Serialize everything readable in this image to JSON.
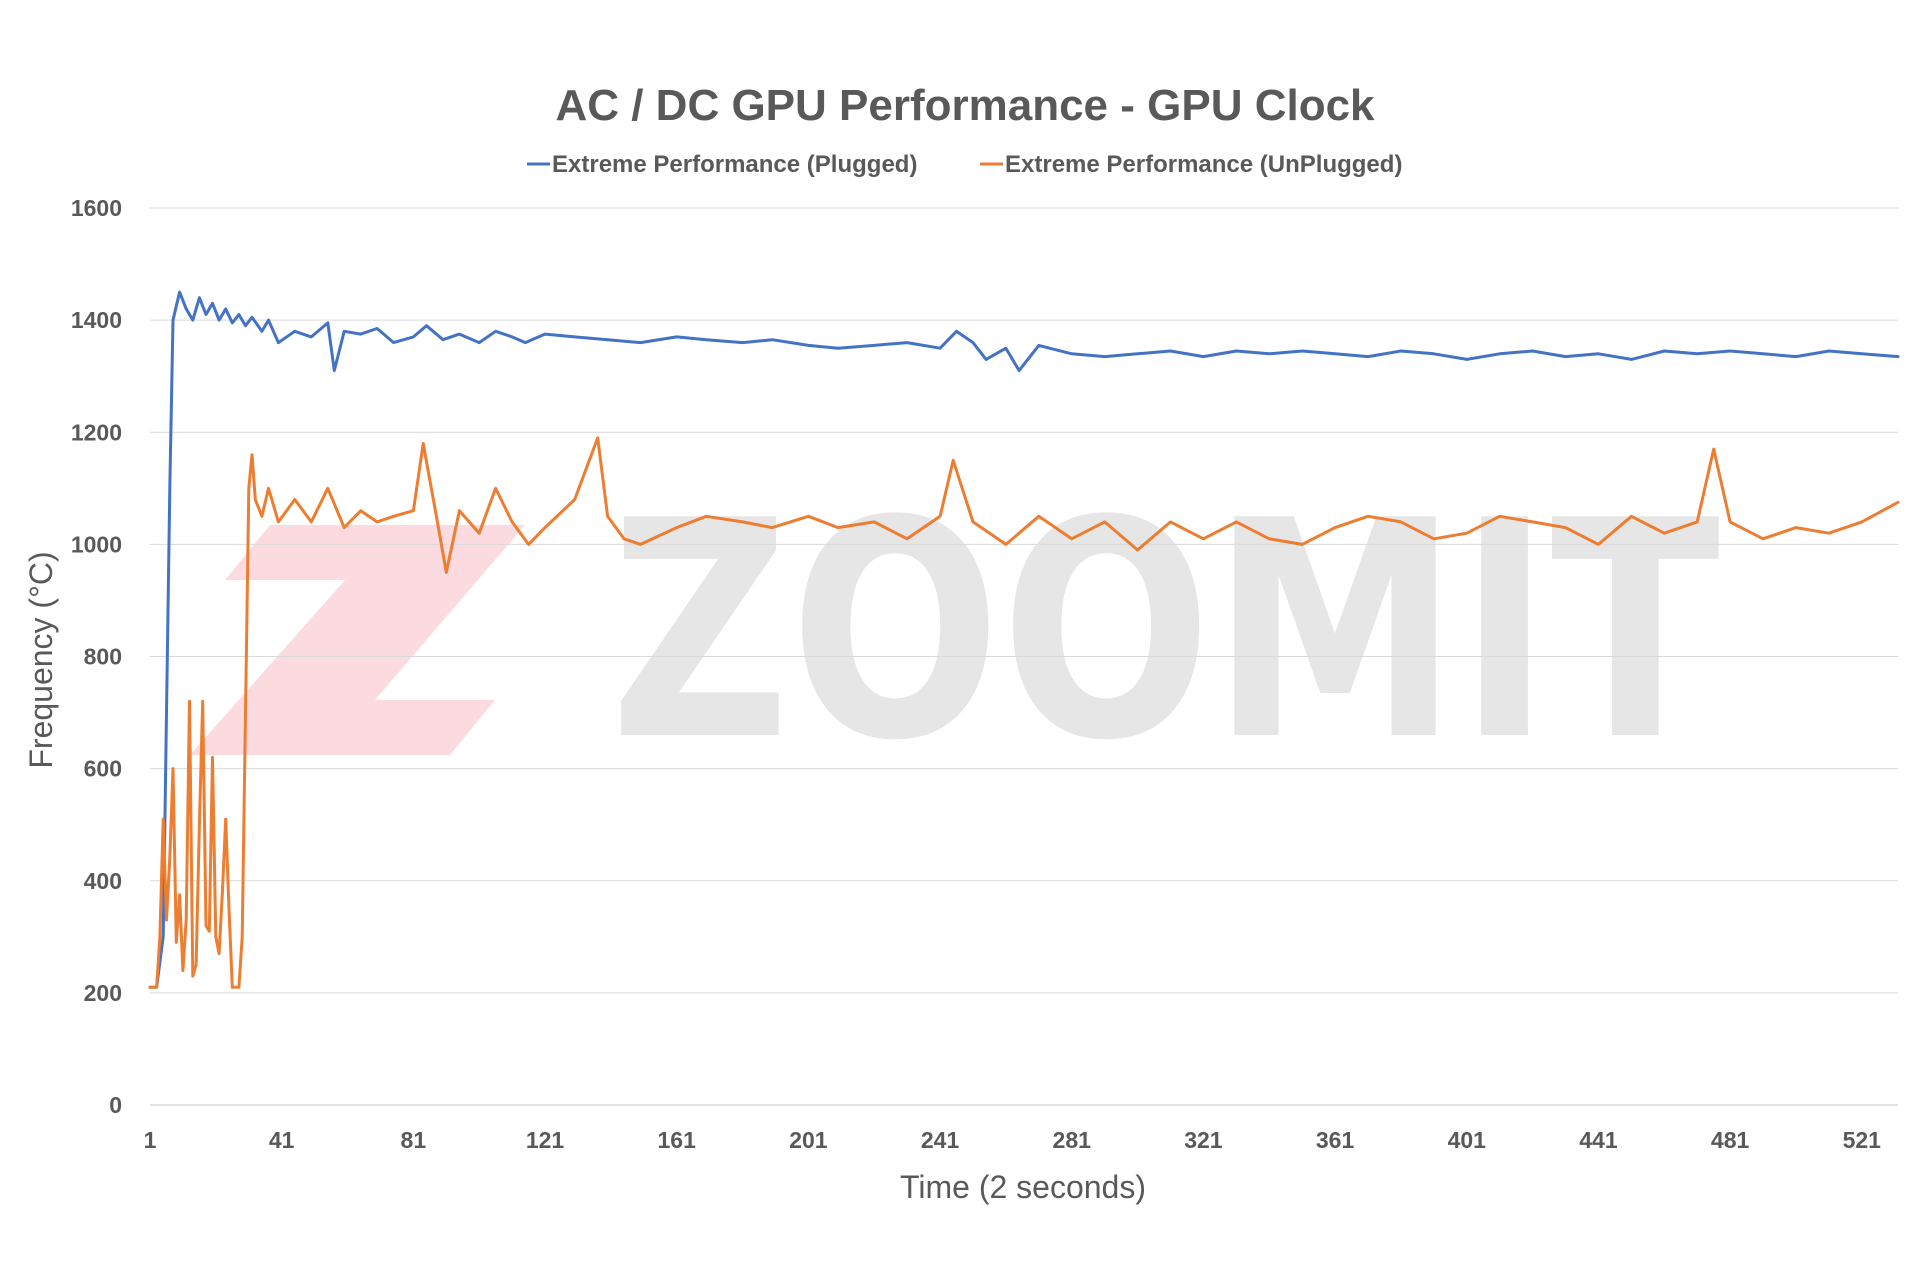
{
  "chart_data": {
    "type": "line",
    "title": "AC / DC GPU Performance - GPU Clock",
    "xlabel": "Time (2 seconds)",
    "ylabel": "Frequency (°C)",
    "xlim": [
      1,
      532
    ],
    "ylim": [
      0,
      1600
    ],
    "y_ticks": [
      0,
      200,
      400,
      600,
      800,
      1000,
      1200,
      1400,
      1600
    ],
    "x_ticks": [
      1,
      41,
      81,
      121,
      161,
      201,
      241,
      281,
      321,
      361,
      401,
      441,
      481,
      521
    ],
    "grid": true,
    "legend": "top-center",
    "series": [
      {
        "name": "Extreme Performance (Plugged)",
        "color": "#4472c4",
        "points": [
          [
            1,
            210
          ],
          [
            3,
            210
          ],
          [
            5,
            300
          ],
          [
            6,
            700
          ],
          [
            7,
            1100
          ],
          [
            8,
            1400
          ],
          [
            10,
            1450
          ],
          [
            12,
            1420
          ],
          [
            14,
            1400
          ],
          [
            16,
            1440
          ],
          [
            18,
            1410
          ],
          [
            20,
            1430
          ],
          [
            22,
            1400
          ],
          [
            24,
            1420
          ],
          [
            26,
            1395
          ],
          [
            28,
            1410
          ],
          [
            30,
            1390
          ],
          [
            32,
            1405
          ],
          [
            35,
            1380
          ],
          [
            37,
            1400
          ],
          [
            40,
            1360
          ],
          [
            45,
            1380
          ],
          [
            50,
            1370
          ],
          [
            55,
            1395
          ],
          [
            57,
            1310
          ],
          [
            60,
            1380
          ],
          [
            65,
            1375
          ],
          [
            70,
            1385
          ],
          [
            75,
            1360
          ],
          [
            81,
            1370
          ],
          [
            85,
            1390
          ],
          [
            90,
            1365
          ],
          [
            95,
            1375
          ],
          [
            101,
            1360
          ],
          [
            106,
            1380
          ],
          [
            111,
            1370
          ],
          [
            115,
            1360
          ],
          [
            121,
            1375
          ],
          [
            130,
            1370
          ],
          [
            140,
            1365
          ],
          [
            150,
            1360
          ],
          [
            161,
            1370
          ],
          [
            170,
            1365
          ],
          [
            181,
            1360
          ],
          [
            190,
            1365
          ],
          [
            201,
            1355
          ],
          [
            210,
            1350
          ],
          [
            221,
            1355
          ],
          [
            231,
            1360
          ],
          [
            241,
            1350
          ],
          [
            246,
            1380
          ],
          [
            251,
            1360
          ],
          [
            255,
            1330
          ],
          [
            261,
            1350
          ],
          [
            265,
            1310
          ],
          [
            271,
            1355
          ],
          [
            281,
            1340
          ],
          [
            291,
            1335
          ],
          [
            301,
            1340
          ],
          [
            311,
            1345
          ],
          [
            321,
            1335
          ],
          [
            331,
            1345
          ],
          [
            341,
            1340
          ],
          [
            351,
            1345
          ],
          [
            361,
            1340
          ],
          [
            371,
            1335
          ],
          [
            381,
            1345
          ],
          [
            391,
            1340
          ],
          [
            401,
            1330
          ],
          [
            411,
            1340
          ],
          [
            421,
            1345
          ],
          [
            431,
            1335
          ],
          [
            441,
            1340
          ],
          [
            451,
            1330
          ],
          [
            461,
            1345
          ],
          [
            471,
            1340
          ],
          [
            481,
            1345
          ],
          [
            491,
            1340
          ],
          [
            501,
            1335
          ],
          [
            511,
            1345
          ],
          [
            521,
            1340
          ],
          [
            532,
            1335
          ]
        ]
      },
      {
        "name": "Extreme Performance (UnPlugged)",
        "color": "#ed7d31",
        "points": [
          [
            1,
            210
          ],
          [
            3,
            210
          ],
          [
            4,
            300
          ],
          [
            5,
            510
          ],
          [
            6,
            330
          ],
          [
            7,
            440
          ],
          [
            8,
            600
          ],
          [
            9,
            290
          ],
          [
            10,
            375
          ],
          [
            11,
            240
          ],
          [
            12,
            330
          ],
          [
            13,
            720
          ],
          [
            14,
            230
          ],
          [
            15,
            250
          ],
          [
            16,
            500
          ],
          [
            17,
            720
          ],
          [
            18,
            320
          ],
          [
            19,
            310
          ],
          [
            20,
            620
          ],
          [
            21,
            300
          ],
          [
            22,
            270
          ],
          [
            23,
            380
          ],
          [
            24,
            510
          ],
          [
            25,
            350
          ],
          [
            26,
            210
          ],
          [
            28,
            210
          ],
          [
            29,
            300
          ],
          [
            30,
            700
          ],
          [
            31,
            1100
          ],
          [
            32,
            1160
          ],
          [
            33,
            1080
          ],
          [
            35,
            1050
          ],
          [
            37,
            1100
          ],
          [
            40,
            1040
          ],
          [
            45,
            1080
          ],
          [
            50,
            1040
          ],
          [
            55,
            1100
          ],
          [
            60,
            1030
          ],
          [
            65,
            1060
          ],
          [
            70,
            1040
          ],
          [
            75,
            1050
          ],
          [
            81,
            1060
          ],
          [
            84,
            1180
          ],
          [
            88,
            1050
          ],
          [
            91,
            950
          ],
          [
            95,
            1060
          ],
          [
            101,
            1020
          ],
          [
            106,
            1100
          ],
          [
            111,
            1040
          ],
          [
            116,
            1000
          ],
          [
            121,
            1030
          ],
          [
            130,
            1080
          ],
          [
            137,
            1190
          ],
          [
            140,
            1050
          ],
          [
            145,
            1010
          ],
          [
            150,
            1000
          ],
          [
            161,
            1030
          ],
          [
            170,
            1050
          ],
          [
            181,
            1040
          ],
          [
            190,
            1030
          ],
          [
            201,
            1050
          ],
          [
            210,
            1030
          ],
          [
            221,
            1040
          ],
          [
            231,
            1010
          ],
          [
            241,
            1050
          ],
          [
            245,
            1150
          ],
          [
            251,
            1040
          ],
          [
            261,
            1000
          ],
          [
            271,
            1050
          ],
          [
            281,
            1010
          ],
          [
            291,
            1040
          ],
          [
            301,
            990
          ],
          [
            311,
            1040
          ],
          [
            321,
            1010
          ],
          [
            331,
            1040
          ],
          [
            341,
            1010
          ],
          [
            351,
            1000
          ],
          [
            361,
            1030
          ],
          [
            371,
            1050
          ],
          [
            381,
            1040
          ],
          [
            391,
            1010
          ],
          [
            401,
            1020
          ],
          [
            411,
            1050
          ],
          [
            421,
            1040
          ],
          [
            431,
            1030
          ],
          [
            441,
            1000
          ],
          [
            451,
            1050
          ],
          [
            461,
            1020
          ],
          [
            471,
            1040
          ],
          [
            476,
            1170
          ],
          [
            481,
            1040
          ],
          [
            491,
            1010
          ],
          [
            501,
            1030
          ],
          [
            511,
            1020
          ],
          [
            521,
            1040
          ],
          [
            532,
            1075
          ]
        ]
      }
    ]
  },
  "watermark": {
    "text": "ZOOMIT",
    "mark_color": "#f9cfd4",
    "text_color": "#e6e6e6"
  }
}
